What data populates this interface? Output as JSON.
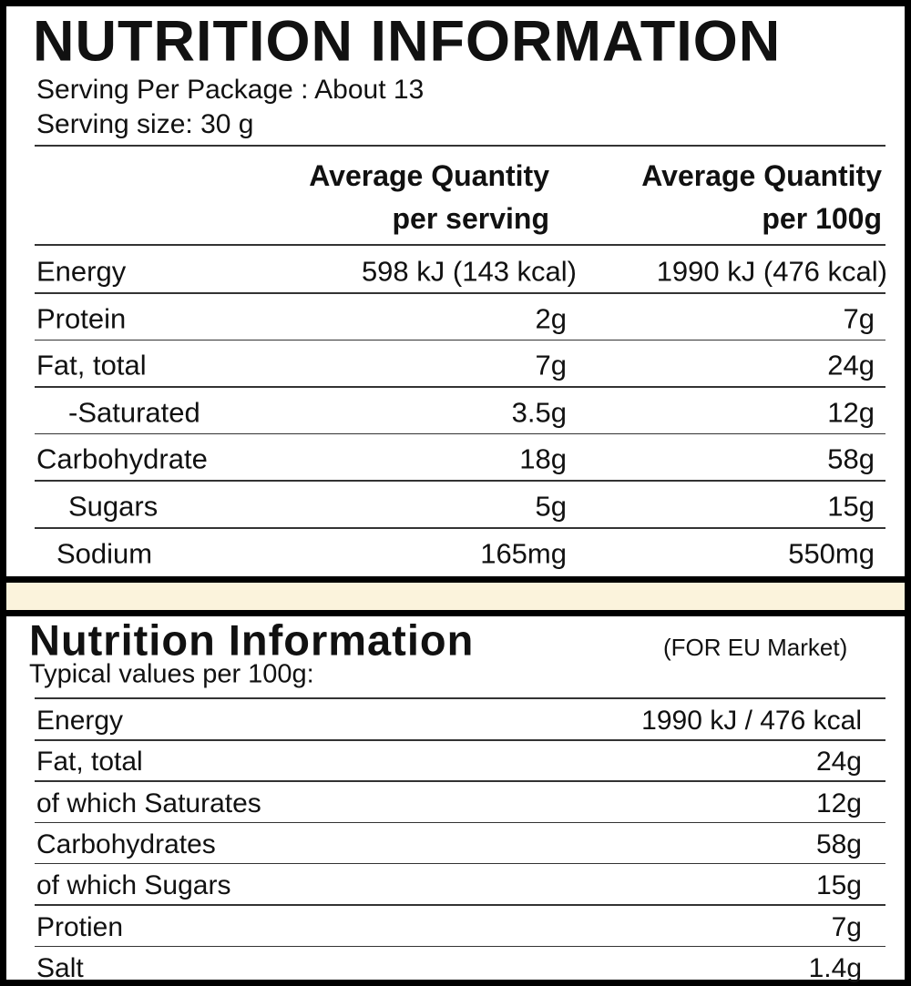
{
  "top": {
    "title": "NUTRITION INFORMATION",
    "servings_per_package": "Serving Per Package : About 13",
    "serving_size": "Serving size: 30 g",
    "headers": [
      [
        "Average Quantity",
        "per serving"
      ],
      [
        "Average Quantity",
        "per 100g"
      ]
    ],
    "rows": [
      [
        "Energy",
        "598 kJ (143 kcal)",
        "1990 kJ (476 kcal)"
      ],
      [
        "Protein",
        "2g",
        "7g"
      ],
      [
        "Fat, total",
        "7g",
        "24g"
      ],
      [
        "-Saturated",
        "3.5g",
        "12g"
      ],
      [
        "Carbohydrate",
        "18g",
        "58g"
      ],
      [
        "Sugars",
        "5g",
        "15g"
      ],
      [
        "Sodium",
        "165mg",
        "550mg"
      ]
    ]
  },
  "bottom": {
    "title": "Nutrition Information",
    "note": "(FOR EU Market)",
    "subtitle": "Typical values per 100g:",
    "rows": [
      [
        "Energy",
        "1990 kJ / 476 kcal"
      ],
      [
        "Fat, total",
        "24g"
      ],
      [
        "of which Saturates",
        "12g"
      ],
      [
        "Carbohydrates",
        "58g"
      ],
      [
        "of which Sugars",
        "15g"
      ],
      [
        "Protien",
        "7g"
      ],
      [
        "Salt",
        "1.4g"
      ]
    ]
  }
}
